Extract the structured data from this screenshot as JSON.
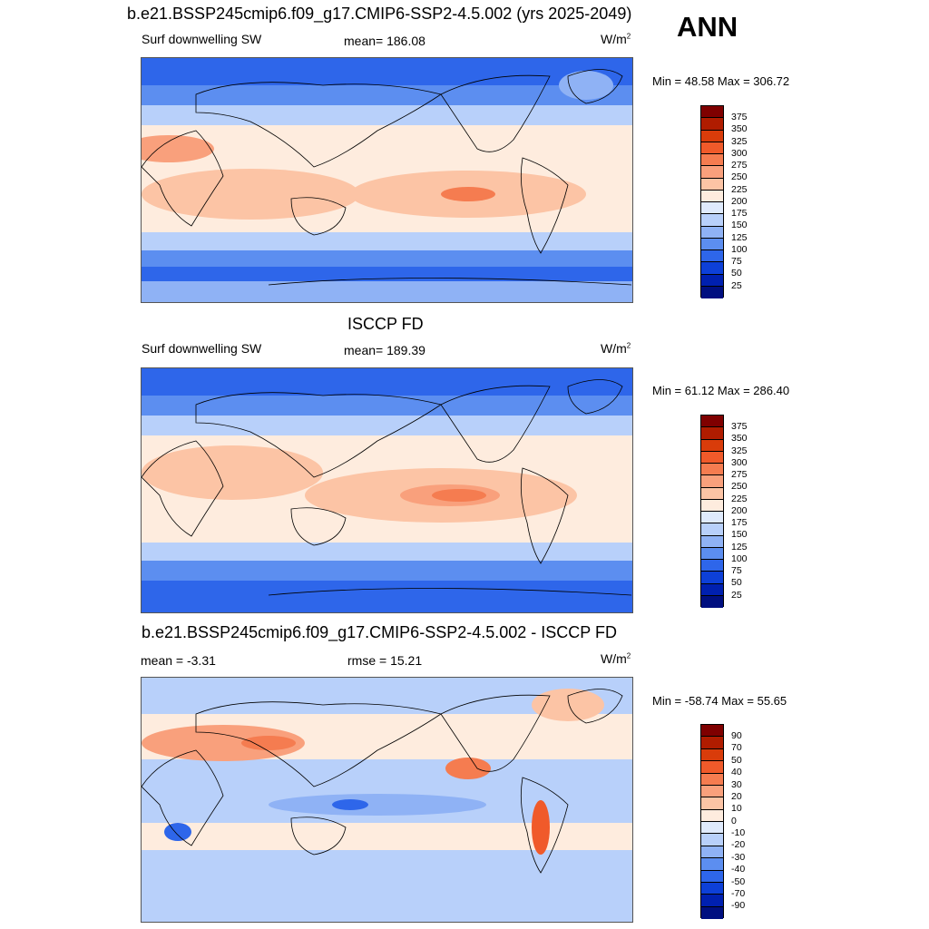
{
  "annotation": "ANN",
  "units_prefix": "W/m",
  "units_exp": "2",
  "panels": [
    {
      "title": "b.e21.BSSP245cmip6.f09_g17.CMIP6-SSP2-4.5.002 (yrs 2025-2049)",
      "left_label": "Surf downwelling SW",
      "center_label": "mean= 186.08",
      "minmax": "Min =  48.58 Max = 306.72",
      "colorbar_labels": [
        "375",
        "350",
        "325",
        "300",
        "275",
        "250",
        "225",
        "200",
        "175",
        "150",
        "125",
        "100",
        "75",
        "50",
        "25"
      ]
    },
    {
      "title": "ISCCP FD",
      "left_label": "Surf downwelling SW",
      "center_label": "mean= 189.39",
      "minmax": "Min =  61.12 Max = 286.40",
      "colorbar_labels": [
        "375",
        "350",
        "325",
        "300",
        "275",
        "250",
        "225",
        "200",
        "175",
        "150",
        "125",
        "100",
        "75",
        "50",
        "25"
      ]
    },
    {
      "title": "b.e21.BSSP245cmip6.f09_g17.CMIP6-SSP2-4.5.002 - ISCCP FD",
      "left_label": "mean =  -3.31",
      "center_label": "rmse =  15.21",
      "minmax": "Min = -58.74 Max =  55.65",
      "colorbar_labels": [
        "90",
        "70",
        "50",
        "40",
        "30",
        "20",
        "10",
        "0",
        "-10",
        "-20",
        "-30",
        "-40",
        "-50",
        "-70",
        "-90"
      ]
    }
  ],
  "colors": {
    "scale": [
      "#7f0000",
      "#b01c00",
      "#d93c0a",
      "#f05a2a",
      "#f57c50",
      "#f9a07c",
      "#fcc4a5",
      "#feecde",
      "#dfeafc",
      "#b8d0fa",
      "#8fb2f5",
      "#5c8ef0",
      "#2e66ea",
      "#0d40d8",
      "#0020b0",
      "#000f80"
    ]
  }
}
